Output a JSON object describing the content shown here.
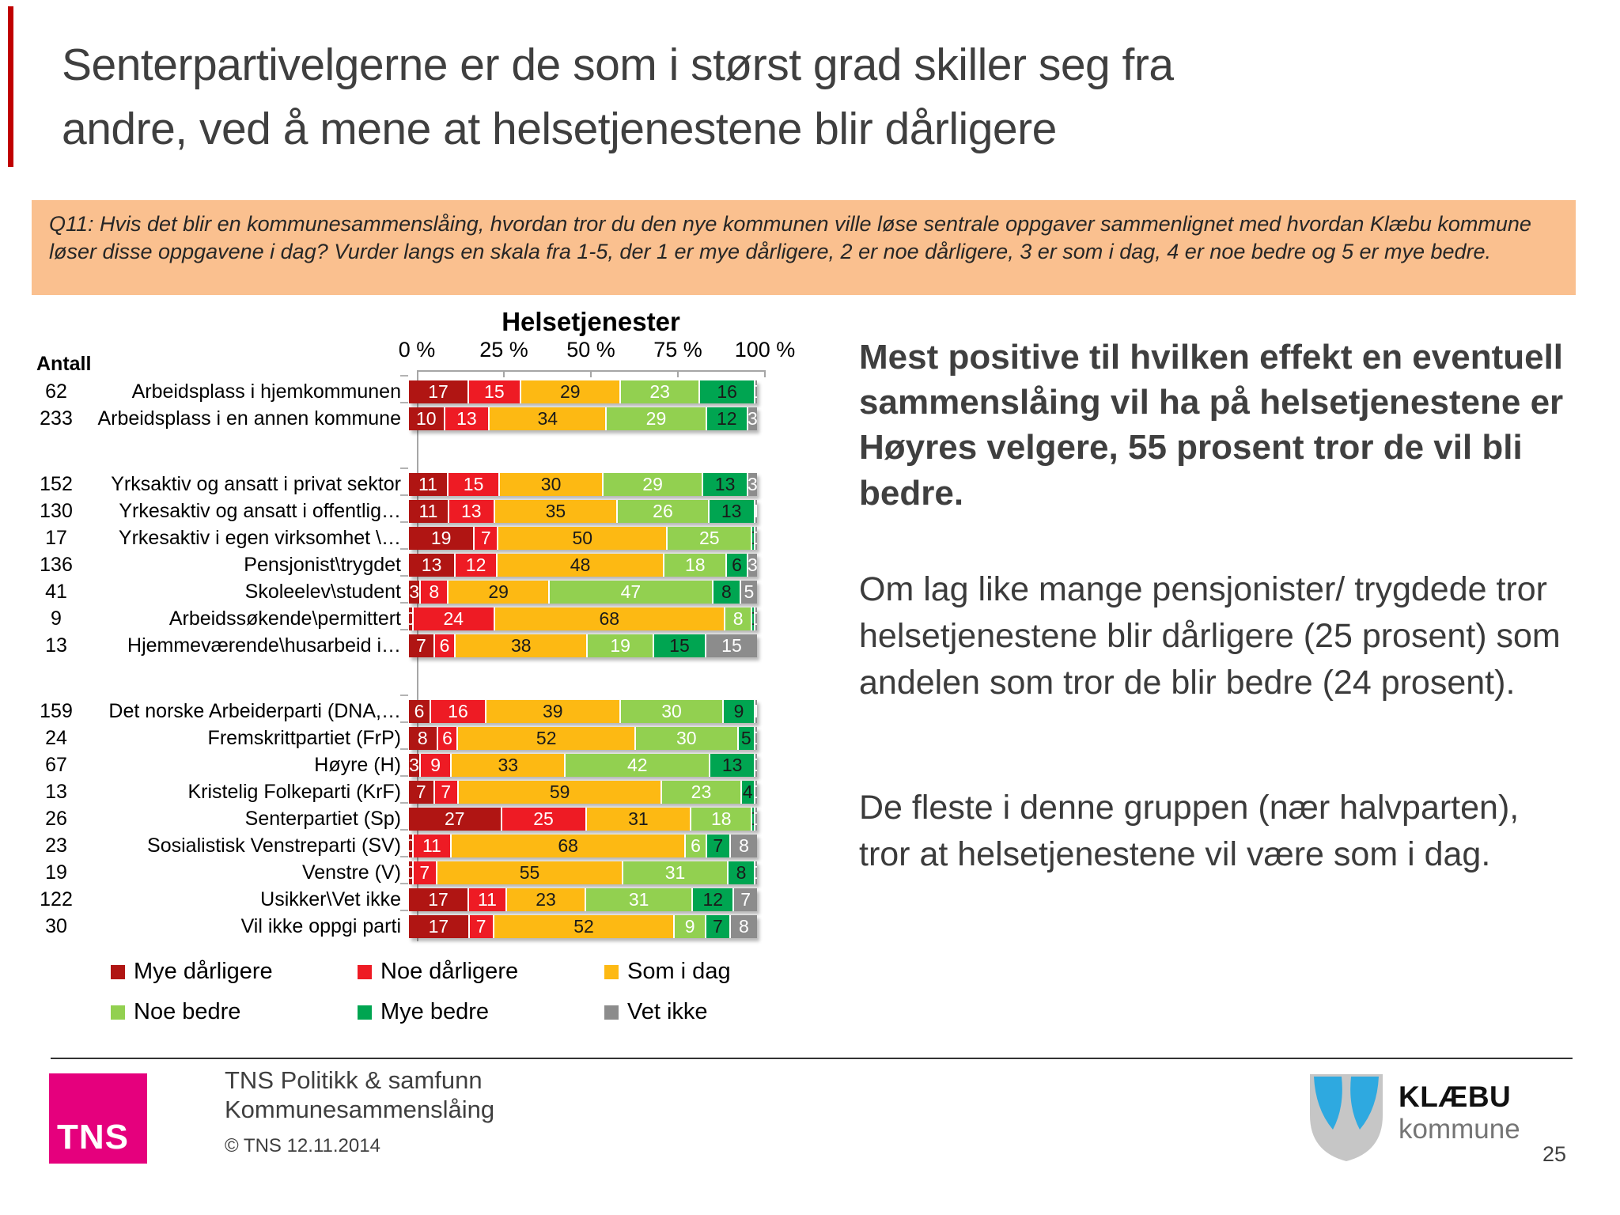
{
  "slide": {
    "title": "Senterpartivelgerne er de som i størst grad skiller seg fra andre, ved å mene at helsetjenestene blir dårligere",
    "question": "Q11: Hvis det blir en kommunesammenslåing, hvordan tror du den nye kommunen ville løse sentrale oppgaver sammenlignet med hvordan Klæbu kommune løser disse oppgavene i dag? Vurder langs en skala fra 1-5, der 1 er mye dårligere, 2 er noe dårligere, 3 er som i dag, 4 er noe bedre og 5 er mye bedre.",
    "page_number": "25"
  },
  "insights": {
    "p1": "Mest positive til hvilken effekt en eventuell sammenslåing vil ha på helsetjenestene er Høyres velgere, 55 prosent tror de vil bli bedre.",
    "p2": "Om lag like mange pensjonister/ trygdede tror helsetjenestene blir dårligere (25 prosent) som andelen som tror de blir bedre (24 prosent).",
    "p3": "De fleste i denne gruppen (nær halvparten), tror at helsetjenestene vil være som i dag."
  },
  "footer": {
    "logo": "TNS",
    "line1": "TNS Politikk & samfunn",
    "line2": "Kommunesammenslåing",
    "copyright": "© TNS 12.11.2014",
    "municipality_name": "KLÆBU",
    "municipality_sub": "kommune"
  },
  "chart_data": {
    "type": "bar",
    "orientation": "horizontal-stacked",
    "title": "Helsetjenester",
    "count_header": "Antall",
    "x_ticks": [
      "0 %",
      "25 %",
      "50 %",
      "75 %",
      "100 %"
    ],
    "xlim": [
      0,
      100
    ],
    "legend_position": "bottom",
    "series": [
      {
        "name": "Mye dårligere",
        "color": "#b01513",
        "text_color": "#ffffff"
      },
      {
        "name": "Noe dårligere",
        "color": "#ee1b24",
        "text_color": "#ffffff"
      },
      {
        "name": "Som i dag",
        "color": "#fdb913",
        "text_color": "#1a1a1a"
      },
      {
        "name": "Noe bedre",
        "color": "#92d050",
        "text_color": "#ffffff"
      },
      {
        "name": "Mye bedre",
        "color": "#00a551",
        "text_color": "#1a1a1a"
      },
      {
        "name": "Vet ikke",
        "color": "#8c8c8c",
        "text_color": "#ffffff"
      }
    ],
    "groups": [
      {
        "rows": [
          {
            "count": 62,
            "label": "Arbeidsplass i hjemkommunen",
            "values": [
              17,
              15,
              29,
              23,
              16,
              0
            ]
          },
          {
            "count": 233,
            "label": "Arbeidsplass i en annen kommune",
            "values": [
              10,
              13,
              34,
              29,
              12,
              3
            ]
          }
        ]
      },
      {
        "rows": [
          {
            "count": 152,
            "label": "Yrksaktiv og ansatt i privat sektor",
            "values": [
              11,
              15,
              30,
              29,
              13,
              3
            ]
          },
          {
            "count": 130,
            "label": "Yrkesaktiv og ansatt i offentlig…",
            "values": [
              11,
              13,
              35,
              26,
              13,
              1
            ]
          },
          {
            "count": 17,
            "label": "Yrkesaktiv i egen virksomhet \\…",
            "values": [
              19,
              7,
              50,
              25,
              0,
              0
            ]
          },
          {
            "count": 136,
            "label": "Pensjonist\\trygdet",
            "values": [
              13,
              12,
              48,
              18,
              6,
              3
            ]
          },
          {
            "count": 41,
            "label": "Skoleelev\\student",
            "values": [
              3,
              8,
              29,
              47,
              8,
              5
            ]
          },
          {
            "count": 9,
            "label": "Arbeidssøkende\\permittert",
            "values": [
              0,
              24,
              68,
              8,
              0,
              0
            ]
          },
          {
            "count": 13,
            "label": "Hjemmeværende\\husarbeid i…",
            "values": [
              7,
              6,
              38,
              19,
              15,
              15
            ]
          }
        ]
      },
      {
        "rows": [
          {
            "count": 159,
            "label": "Det norske Arbeiderparti (DNA,…",
            "values": [
              6,
              16,
              39,
              30,
              9,
              1
            ]
          },
          {
            "count": 24,
            "label": "Fremskrittpartiet (FrP)",
            "values": [
              8,
              6,
              52,
              30,
              5,
              0
            ]
          },
          {
            "count": 67,
            "label": "Høyre (H)",
            "values": [
              3,
              9,
              33,
              42,
              13,
              0
            ]
          },
          {
            "count": 13,
            "label": "Kristelig Folkeparti (KrF)",
            "values": [
              7,
              7,
              59,
              23,
              4,
              0
            ]
          },
          {
            "count": 26,
            "label": "Senterpartiet (Sp)",
            "values": [
              27,
              25,
              31,
              18,
              0,
              0
            ]
          },
          {
            "count": 23,
            "label": "Sosialistisk Venstreparti (SV)",
            "values": [
              0,
              11,
              68,
              6,
              7,
              8
            ]
          },
          {
            "count": 19,
            "label": "Venstre (V)",
            "values": [
              0,
              7,
              55,
              31,
              8,
              0
            ]
          },
          {
            "count": 122,
            "label": "Usikker\\Vet ikke",
            "values": [
              17,
              11,
              23,
              31,
              12,
              7
            ]
          },
          {
            "count": 30,
            "label": "Vil ikke oppgi parti",
            "values": [
              17,
              7,
              52,
              9,
              7,
              8
            ]
          }
        ]
      }
    ]
  }
}
